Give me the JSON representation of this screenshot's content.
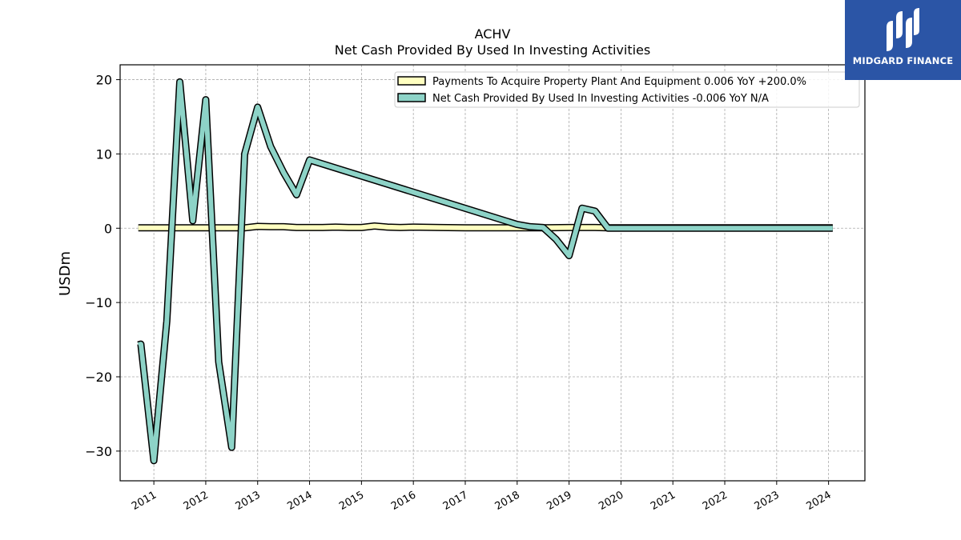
{
  "chart_data": {
    "type": "line",
    "title": "ACHV",
    "subtitle": "Net Cash Provided By Used In Investing Activities",
    "ylabel": "USDm",
    "xlabel": "",
    "xlim": [
      2010.35,
      2024.7
    ],
    "ylim": [
      -34,
      22
    ],
    "yticks": [
      20,
      10,
      0,
      -10,
      -20,
      -30
    ],
    "ytick_labels": [
      "20",
      "10",
      "0",
      "−10",
      "−20",
      "−30"
    ],
    "xticks": [
      2011,
      2012,
      2013,
      2014,
      2015,
      2016,
      2017,
      2018,
      2019,
      2020,
      2021,
      2022,
      2023,
      2024
    ],
    "xtick_labels": [
      "2011",
      "2012",
      "2013",
      "2014",
      "2015",
      "2016",
      "2017",
      "2018",
      "2019",
      "2020",
      "2021",
      "2022",
      "2023",
      "2024"
    ],
    "grid": true,
    "legend_position": "top-right",
    "series": [
      {
        "name": "Payments To Acquire Property Plant And Equipment  0.006 YoY +200.0%",
        "color": "#ffffc0",
        "x": [
          2010.7,
          2011.0,
          2011.5,
          2012.0,
          2012.5,
          2012.75,
          2013.0,
          2013.25,
          2013.5,
          2013.75,
          2014.0,
          2014.25,
          2014.5,
          2014.75,
          2015.0,
          2015.25,
          2015.5,
          2015.75,
          2016.0,
          2016.5,
          2017.0,
          2017.5,
          2018.0,
          2018.5,
          2019.0,
          2019.5,
          2019.75,
          2020.0,
          2021.0,
          2022.0,
          2023.0,
          2024.08
        ],
        "y": [
          0.05,
          0.05,
          0.05,
          0.05,
          0.05,
          0.05,
          0.25,
          0.2,
          0.2,
          0.1,
          0.1,
          0.1,
          0.15,
          0.1,
          0.1,
          0.3,
          0.15,
          0.1,
          0.15,
          0.1,
          0.05,
          0.05,
          0.05,
          0.05,
          0.1,
          0.1,
          0.05,
          0.05,
          0.05,
          0.05,
          0.05,
          0.05
        ]
      },
      {
        "name": "Net Cash Provided By Used In Investing Activities  -0.006 YoY N/A",
        "color": "#8dd3c7",
        "x": [
          2010.7,
          2010.75,
          2011.0,
          2011.25,
          2011.5,
          2011.75,
          2012.0,
          2012.25,
          2012.5,
          2012.75,
          2013.0,
          2013.25,
          2013.5,
          2013.75,
          2014.0,
          2018.0,
          2018.25,
          2018.5,
          2018.75,
          2019.0,
          2019.25,
          2019.5,
          2019.75,
          2020.0,
          2021.0,
          2022.0,
          2023.0,
          2024.08
        ],
        "y": [
          -15.7,
          -15.6,
          -31.3,
          -12.5,
          19.7,
          1.0,
          17.3,
          -18.0,
          -29.5,
          10.0,
          16.3,
          11.0,
          7.5,
          4.5,
          9.2,
          0.5,
          0.2,
          0.1,
          -1.5,
          -3.7,
          2.7,
          2.3,
          0.0,
          0.0,
          0.0,
          0.0,
          0.0,
          0.0
        ]
      }
    ]
  },
  "logo": {
    "text": "MIDGARD FINANCE"
  }
}
